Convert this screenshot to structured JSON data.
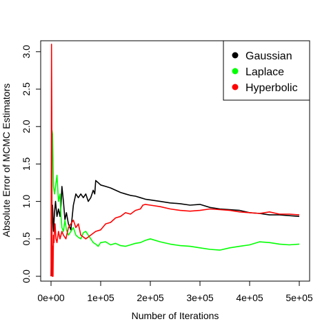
{
  "chart_data": {
    "type": "line",
    "title": "",
    "xlabel": "Number of Iterations",
    "ylabel": "Absolute Error of MCMC Estimators",
    "xlim": [
      0,
      500000
    ],
    "ylim": [
      0,
      3.1
    ],
    "x_ticks": [
      0,
      100000,
      200000,
      300000,
      400000,
      500000
    ],
    "x_tick_labels": [
      "0e+00",
      "1e+05",
      "2e+05",
      "3e+05",
      "4e+05",
      "5e+05"
    ],
    "y_ticks": [
      0.0,
      0.5,
      1.0,
      1.5,
      2.0,
      2.5,
      3.0
    ],
    "y_tick_labels": [
      "0.0",
      "0.5",
      "1.0",
      "1.5",
      "2.0",
      "2.5",
      "3.0"
    ],
    "grid": false,
    "legend": {
      "position": "top-right",
      "entries": [
        "Gaussian",
        "Laplace",
        "Hyperbolic"
      ]
    },
    "series": [
      {
        "name": "Gaussian",
        "color": "#000000",
        "x": [
          0,
          1000,
          2000,
          3000,
          4000,
          5000,
          7000,
          9000,
          12000,
          15000,
          18000,
          20000,
          22000,
          25000,
          28000,
          31000,
          35000,
          40000,
          45000,
          50000,
          55000,
          60000,
          65000,
          70000,
          75000,
          80000,
          85000,
          88000,
          90000,
          95000,
          100000,
          110000,
          120000,
          130000,
          140000,
          150000,
          160000,
          170000,
          180000,
          190000,
          200000,
          220000,
          240000,
          260000,
          280000,
          300000,
          320000,
          340000,
          360000,
          380000,
          400000,
          420000,
          440000,
          460000,
          480000,
          500000
        ],
        "y": [
          0.0,
          0.3,
          0.7,
          0.95,
          0.75,
          0.6,
          0.85,
          1.0,
          0.8,
          0.9,
          0.8,
          0.95,
          1.2,
          1.0,
          0.75,
          0.85,
          0.7,
          0.62,
          0.95,
          1.1,
          1.05,
          1.1,
          1.05,
          1.1,
          1.0,
          1.05,
          1.15,
          1.1,
          1.28,
          1.25,
          1.22,
          1.2,
          1.18,
          1.15,
          1.12,
          1.1,
          1.08,
          1.07,
          1.05,
          1.03,
          1.02,
          1.0,
          0.98,
          0.97,
          0.95,
          0.96,
          0.92,
          0.9,
          0.89,
          0.88,
          0.85,
          0.84,
          0.82,
          0.82,
          0.81,
          0.8
        ]
      },
      {
        "name": "Laplace",
        "color": "#00ff00",
        "x": [
          0,
          1000,
          2000,
          3000,
          4000,
          5000,
          7000,
          9000,
          12000,
          15000,
          18000,
          20000,
          22000,
          25000,
          28000,
          31000,
          35000,
          40000,
          45000,
          50000,
          55000,
          60000,
          65000,
          70000,
          75000,
          80000,
          85000,
          90000,
          95000,
          100000,
          110000,
          120000,
          130000,
          140000,
          150000,
          160000,
          170000,
          180000,
          190000,
          200000,
          220000,
          240000,
          260000,
          280000,
          300000,
          320000,
          340000,
          360000,
          380000,
          400000,
          420000,
          440000,
          460000,
          480000,
          500000
        ],
        "y": [
          0.7,
          1.6,
          1.95,
          1.9,
          1.5,
          1.2,
          1.1,
          1.2,
          1.35,
          1.0,
          1.1,
          0.8,
          0.65,
          0.6,
          0.75,
          0.62,
          0.55,
          0.6,
          0.65,
          0.55,
          0.52,
          0.5,
          0.58,
          0.6,
          0.55,
          0.5,
          0.45,
          0.43,
          0.4,
          0.45,
          0.46,
          0.42,
          0.44,
          0.41,
          0.4,
          0.42,
          0.44,
          0.45,
          0.48,
          0.5,
          0.46,
          0.43,
          0.41,
          0.4,
          0.38,
          0.36,
          0.35,
          0.38,
          0.4,
          0.42,
          0.46,
          0.45,
          0.43,
          0.42,
          0.43
        ]
      },
      {
        "name": "Hyperbolic",
        "color": "#ff0000",
        "x": [
          0,
          500,
          1000,
          1500,
          2000,
          2500,
          3000,
          3500,
          4000,
          4500,
          5000,
          6000,
          7000,
          8000,
          10000,
          12000,
          15000,
          18000,
          22000,
          25000,
          30000,
          35000,
          40000,
          45000,
          50000,
          55000,
          60000,
          70000,
          80000,
          90000,
          100000,
          110000,
          120000,
          130000,
          140000,
          150000,
          160000,
          170000,
          180000,
          185000,
          190000,
          200000,
          220000,
          240000,
          260000,
          280000,
          300000,
          320000,
          340000,
          360000,
          380000,
          400000,
          420000,
          440000,
          460000,
          480000,
          500000
        ],
        "y": [
          0.0,
          1.5,
          3.1,
          2.2,
          0.6,
          0.0,
          0.2,
          0.4,
          0.0,
          0.3,
          0.55,
          0.45,
          0.6,
          0.7,
          0.5,
          0.45,
          0.6,
          0.5,
          0.6,
          0.55,
          0.5,
          0.65,
          0.7,
          0.75,
          0.65,
          0.7,
          0.55,
          0.5,
          0.55,
          0.6,
          0.62,
          0.7,
          0.72,
          0.78,
          0.8,
          0.85,
          0.83,
          0.88,
          0.9,
          0.95,
          0.96,
          0.95,
          0.93,
          0.9,
          0.88,
          0.87,
          0.88,
          0.9,
          0.89,
          0.88,
          0.86,
          0.85,
          0.84,
          0.86,
          0.83,
          0.83,
          0.82
        ]
      }
    ]
  }
}
